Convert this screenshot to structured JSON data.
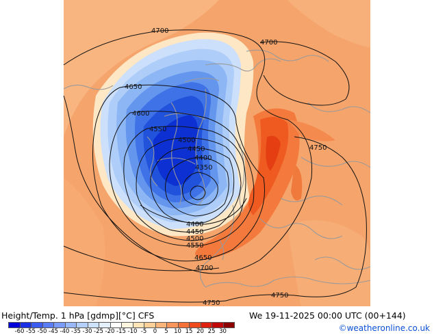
{
  "map": {
    "contour_labels": [
      "4700",
      "4700",
      "4650",
      "4600",
      "4550",
      "4500",
      "4450",
      "4400",
      "4350",
      "4400",
      "4450",
      "4500",
      "4550",
      "4650",
      "4700",
      "4750",
      "4750",
      "4750"
    ]
  },
  "footer": {
    "title": "Height/Temp. 1 hPa [gdmp][°C] CFS",
    "valid_time": "We 19-11-2025 00:00 UTC (00+144)",
    "credit": "©weatheronline.co.uk"
  },
  "colorbar": {
    "ticks": [
      "-60",
      "-55",
      "-50",
      "-45",
      "-40",
      "-35",
      "-30",
      "-25",
      "-20",
      "-15",
      "-10",
      "-5",
      "0",
      "5",
      "10",
      "15",
      "20",
      "25",
      "30"
    ],
    "colors": [
      "#0000d8",
      "#1a2ee6",
      "#3c5cf0",
      "#5a7cf5",
      "#7a9cf8",
      "#98b8fa",
      "#b4d0fc",
      "#cde2fd",
      "#e4f0fe",
      "#ffffff",
      "#fff6e0",
      "#ffe4b8",
      "#fdd09a",
      "#fbb47a",
      "#f8955a",
      "#f4723a",
      "#ee4a1e",
      "#e0200e",
      "#c00808",
      "#8c0000"
    ]
  }
}
